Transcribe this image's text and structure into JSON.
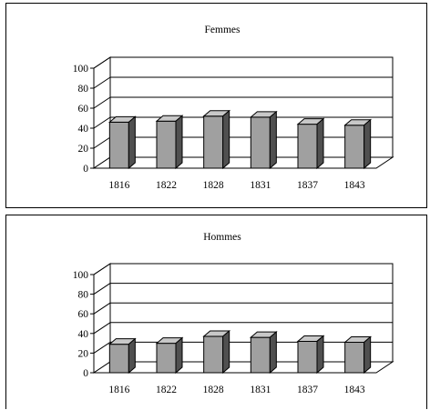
{
  "chart_data": [
    {
      "type": "bar",
      "title": "Femmes",
      "categories": [
        "1816",
        "1822",
        "1828",
        "1831",
        "1837",
        "1843"
      ],
      "values": [
        46,
        47,
        52,
        51,
        44,
        43
      ],
      "ylim": [
        0,
        100
      ],
      "yticks": [
        "0",
        "20",
        "40",
        "60",
        "80",
        "100"
      ],
      "grid": true,
      "style": "3d",
      "colors": {
        "bar_front": "#a0a0a0",
        "bar_top": "#c8c8c8",
        "bar_side": "#505050"
      }
    },
    {
      "type": "bar",
      "title": "Hommes",
      "categories": [
        "1816",
        "1822",
        "1828",
        "1831",
        "1837",
        "1843"
      ],
      "values": [
        29,
        30,
        37,
        36,
        32,
        31
      ],
      "ylim": [
        0,
        100
      ],
      "yticks": [
        "0",
        "20",
        "40",
        "60",
        "80",
        "100"
      ],
      "grid": true,
      "style": "3d",
      "colors": {
        "bar_front": "#a0a0a0",
        "bar_top": "#c8c8c8",
        "bar_side": "#505050"
      }
    }
  ]
}
